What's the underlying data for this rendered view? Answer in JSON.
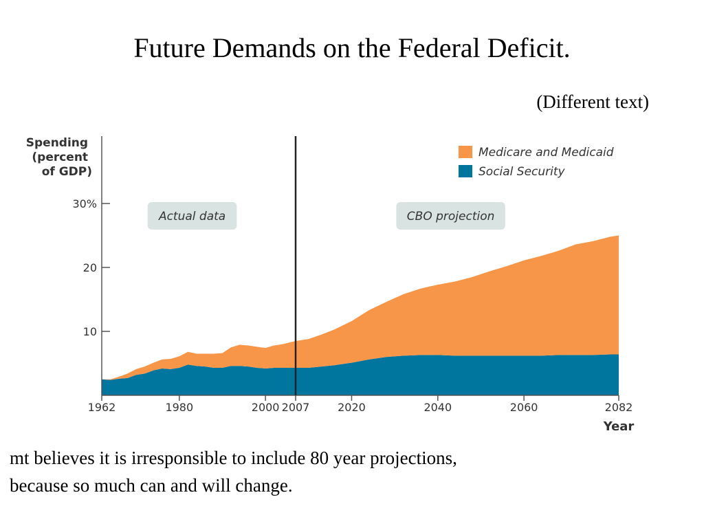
{
  "slide": {
    "title": "Future Demands on the Federal Deficit.",
    "subtitle": "(Different text)",
    "caption_lines": [
      "mt believes it is irresponsible to include 80 year projections,",
      "because so much can and will change."
    ]
  },
  "chart_data": {
    "type": "area",
    "stacked": true,
    "ylabel": [
      "Spending",
      "(percent",
      "of GDP)"
    ],
    "xlabel": "Year",
    "xlim": [
      1962,
      2082
    ],
    "ylim": [
      0,
      30
    ],
    "yticks": [
      10,
      20,
      30
    ],
    "ytick_labels": [
      "10",
      "20",
      "30%"
    ],
    "xticks": [
      1962,
      1980,
      2000,
      2007,
      2020,
      2040,
      2060,
      2082
    ],
    "xtick_labels": [
      "1962",
      "1980",
      "2000",
      "2007",
      "2020",
      "2040",
      "2060",
      "2082"
    ],
    "divider_year": 2007,
    "annotations": [
      {
        "text": "Actual data",
        "year": 1983
      },
      {
        "text": "CBO projection",
        "year": 2043
      }
    ],
    "legend": {
      "placement": "top-right"
    },
    "x": [
      1962,
      1964,
      1966,
      1968,
      1970,
      1972,
      1974,
      1976,
      1978,
      1980,
      1982,
      1984,
      1986,
      1988,
      1990,
      1992,
      1994,
      1996,
      1998,
      2000,
      2002,
      2004,
      2007,
      2010,
      2013,
      2016,
      2020,
      2024,
      2028,
      2032,
      2036,
      2040,
      2044,
      2048,
      2052,
      2056,
      2060,
      2064,
      2068,
      2072,
      2076,
      2080,
      2082
    ],
    "series": [
      {
        "name": "Social Security",
        "color": "#00759e",
        "values": [
          2.5,
          2.4,
          2.6,
          2.7,
          3.2,
          3.4,
          3.9,
          4.2,
          4.1,
          4.3,
          4.8,
          4.6,
          4.5,
          4.3,
          4.3,
          4.6,
          4.6,
          4.5,
          4.3,
          4.2,
          4.3,
          4.3,
          4.3,
          4.3,
          4.5,
          4.7,
          5.1,
          5.6,
          6.0,
          6.2,
          6.3,
          6.3,
          6.2,
          6.2,
          6.2,
          6.2,
          6.2,
          6.2,
          6.3,
          6.3,
          6.3,
          6.4,
          6.4
        ]
      },
      {
        "name": "Medicare and Medicaid",
        "color": "#f79548",
        "values": [
          0.0,
          0.1,
          0.3,
          0.7,
          0.9,
          1.1,
          1.2,
          1.4,
          1.6,
          1.8,
          2.0,
          1.9,
          2.0,
          2.2,
          2.3,
          2.9,
          3.3,
          3.3,
          3.3,
          3.2,
          3.5,
          3.7,
          4.2,
          4.5,
          5.0,
          5.6,
          6.5,
          7.7,
          8.6,
          9.6,
          10.4,
          11.0,
          11.6,
          12.3,
          13.2,
          14.0,
          14.9,
          15.6,
          16.3,
          17.3,
          17.8,
          18.4,
          18.6
        ]
      }
    ]
  }
}
